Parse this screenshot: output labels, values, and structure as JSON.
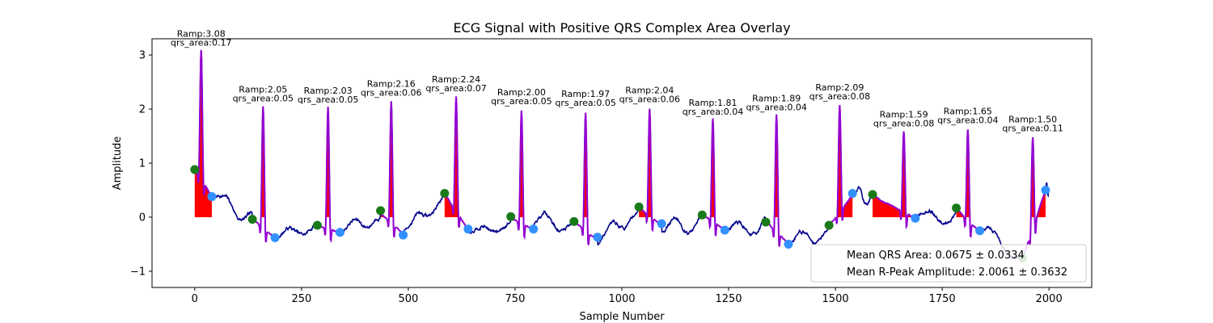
{
  "chart_data": {
    "type": "line",
    "title": "ECG Signal with Positive QRS Complex Area Overlay",
    "xlabel": "Sample Number",
    "ylabel": "Amplitude",
    "xlim": [
      -100,
      2100
    ],
    "ylim": [
      -1.3,
      3.3
    ],
    "xticks": [
      0,
      250,
      500,
      750,
      1000,
      1250,
      1500,
      1750,
      2000
    ],
    "yticks": [
      -1,
      0,
      1,
      2,
      3
    ],
    "ytick_labels": [
      "−1",
      "0",
      "1",
      "2",
      "3"
    ],
    "grid": false,
    "colors": {
      "signal": "#00008b",
      "qrs_segment": "#9400d3",
      "qrs_area_fill": "#ff0000",
      "qrs_onset": "#1a7a1a",
      "qrs_offset": "#3390ff"
    },
    "beats": [
      {
        "onset": 0,
        "r_peak": 15,
        "offset": 40,
        "r_amp": 3.08,
        "qrs_area": 0.17,
        "onset_amp": 0.88,
        "offset_amp": 0.38,
        "annotation": [
          "Ramp:3.08",
          "qrs_area:0.17"
        ]
      },
      {
        "onset": 135,
        "r_peak": 160,
        "offset": 188,
        "r_amp": 2.05,
        "qrs_area": 0.05,
        "onset_amp": -0.04,
        "offset_amp": -0.38,
        "annotation": [
          "Ramp:2.05",
          "qrs_area:0.05"
        ]
      },
      {
        "onset": 287,
        "r_peak": 312,
        "offset": 340,
        "r_amp": 2.03,
        "qrs_area": 0.05,
        "onset_amp": -0.15,
        "offset_amp": -0.28,
        "annotation": [
          "Ramp:2.03",
          "qrs_area:0.05"
        ]
      },
      {
        "onset": 435,
        "r_peak": 460,
        "offset": 488,
        "r_amp": 2.16,
        "qrs_area": 0.06,
        "onset_amp": 0.12,
        "offset_amp": -0.33,
        "annotation": [
          "Ramp:2.16",
          "qrs_area:0.06"
        ]
      },
      {
        "onset": 585,
        "r_peak": 612,
        "offset": 640,
        "r_amp": 2.24,
        "qrs_area": 0.07,
        "onset_amp": 0.44,
        "offset_amp": -0.22,
        "annotation": [
          "Ramp:2.24",
          "qrs_area:0.07"
        ]
      },
      {
        "onset": 740,
        "r_peak": 765,
        "offset": 793,
        "r_amp": 2.0,
        "qrs_area": 0.05,
        "onset_amp": 0.01,
        "offset_amp": -0.22,
        "annotation": [
          "Ramp:2.00",
          "qrs_area:0.05"
        ]
      },
      {
        "onset": 888,
        "r_peak": 915,
        "offset": 943,
        "r_amp": 1.97,
        "qrs_area": 0.05,
        "onset_amp": -0.08,
        "offset_amp": -0.37,
        "annotation": [
          "Ramp:1.97",
          "qrs_area:0.05"
        ]
      },
      {
        "onset": 1040,
        "r_peak": 1065,
        "offset": 1093,
        "r_amp": 2.04,
        "qrs_area": 0.06,
        "onset_amp": 0.19,
        "offset_amp": -0.12,
        "annotation": [
          "Ramp:2.04",
          "qrs_area:0.06"
        ]
      },
      {
        "onset": 1188,
        "r_peak": 1213,
        "offset": 1241,
        "r_amp": 1.81,
        "qrs_area": 0.04,
        "onset_amp": 0.04,
        "offset_amp": -0.24,
        "annotation": [
          "Ramp:1.81",
          "qrs_area:0.04"
        ]
      },
      {
        "onset": 1337,
        "r_peak": 1362,
        "offset": 1390,
        "r_amp": 1.89,
        "qrs_area": 0.04,
        "onset_amp": -0.09,
        "offset_amp": -0.5,
        "annotation": [
          "Ramp:1.89",
          "qrs_area:0.04"
        ]
      },
      {
        "onset": 1485,
        "r_peak": 1510,
        "offset": 1540,
        "r_amp": 2.09,
        "qrs_area": 0.08,
        "onset_amp": -0.15,
        "offset_amp": 0.44,
        "annotation": [
          "Ramp:2.09",
          "qrs_area:0.08"
        ]
      },
      {
        "onset": 1587,
        "r_peak": 1660,
        "offset": 1687,
        "r_amp": 1.59,
        "qrs_area": 0.08,
        "onset_amp": 0.42,
        "offset_amp": -0.02,
        "annotation": [
          "Ramp:1.59",
          "qrs_area:0.08"
        ]
      },
      {
        "onset": 1783,
        "r_peak": 1810,
        "offset": 1838,
        "r_amp": 1.65,
        "qrs_area": 0.04,
        "onset_amp": 0.17,
        "offset_amp": -0.25,
        "annotation": [
          "Ramp:1.65",
          "qrs_area:0.04"
        ]
      },
      {
        "onset": 1938,
        "r_peak": 1962,
        "offset": 1992,
        "r_amp": 1.5,
        "qrs_area": 0.11,
        "onset_amp": -0.75,
        "offset_amp": 0.5,
        "annotation": [
          "Ramp:1.50",
          "qrs_area:0.11"
        ]
      }
    ],
    "legend": {
      "placement": "lower-right",
      "entries": [
        "Mean QRS Area: 0.0675 ± 0.0334",
        "Mean R-Peak Amplitude: 2.0061 ± 0.3632"
      ]
    }
  }
}
